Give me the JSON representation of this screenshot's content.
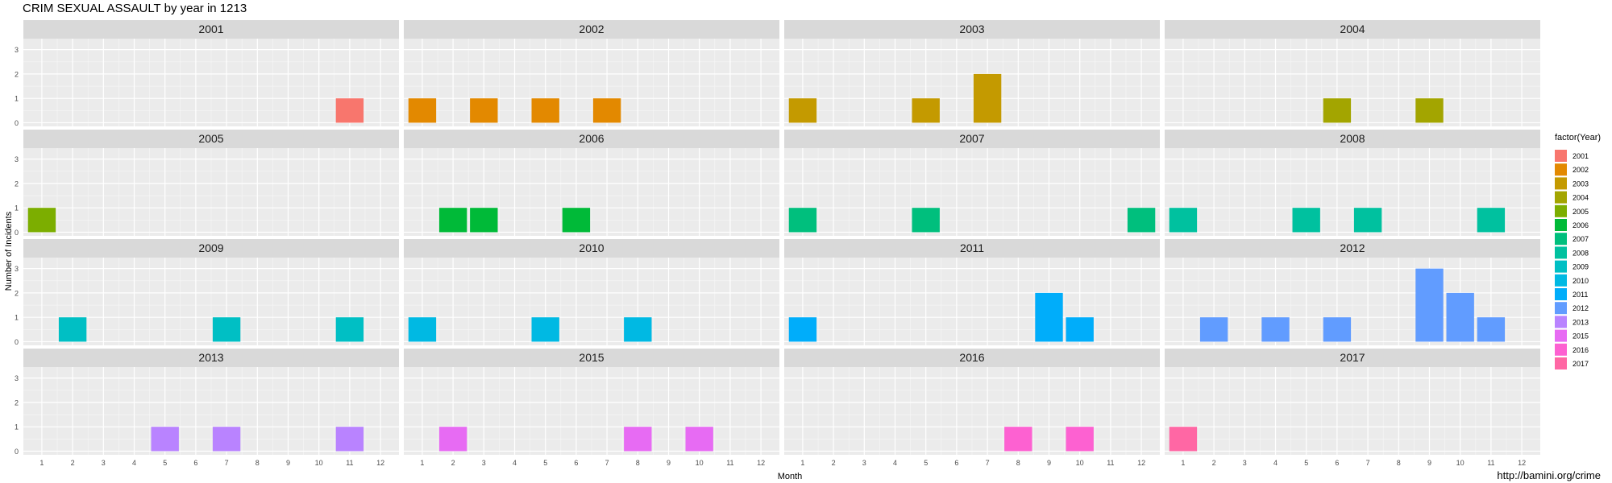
{
  "title": "CRIM SEXUAL ASSAULT by year in 1213",
  "source": "http://bamini.org/crime",
  "chart_data": {
    "type": "bar",
    "facet": "Year",
    "xlabel": "Month",
    "ylabel": "Number of Incidents",
    "xticks": [
      1,
      2,
      3,
      4,
      5,
      6,
      7,
      8,
      9,
      10,
      11,
      12
    ],
    "ylim": [
      0,
      3
    ],
    "yticks": [
      0,
      1,
      2,
      3
    ],
    "grid": true,
    "legend": {
      "title": "factor(Year)",
      "placement": "right"
    },
    "panels": [
      {
        "year": "2001",
        "color": "#F8766D",
        "bars": [
          {
            "x": 11,
            "y": 1
          }
        ]
      },
      {
        "year": "2002",
        "color": "#E38900",
        "bars": [
          {
            "x": 1,
            "y": 1
          },
          {
            "x": 3,
            "y": 1
          },
          {
            "x": 5,
            "y": 1
          },
          {
            "x": 7,
            "y": 1
          }
        ]
      },
      {
        "year": "2003",
        "color": "#C49A00",
        "bars": [
          {
            "x": 1,
            "y": 1
          },
          {
            "x": 5,
            "y": 1
          },
          {
            "x": 7,
            "y": 2
          }
        ]
      },
      {
        "year": "2004",
        "color": "#A3A500",
        "bars": [
          {
            "x": 6,
            "y": 1
          },
          {
            "x": 9,
            "y": 1
          }
        ]
      },
      {
        "year": "2005",
        "color": "#7CAE00",
        "bars": [
          {
            "x": 1,
            "y": 1
          }
        ]
      },
      {
        "year": "2006",
        "color": "#00BA38",
        "bars": [
          {
            "x": 2,
            "y": 1
          },
          {
            "x": 3,
            "y": 1
          },
          {
            "x": 6,
            "y": 1
          }
        ]
      },
      {
        "year": "2007",
        "color": "#00BF7D",
        "bars": [
          {
            "x": 1,
            "y": 1
          },
          {
            "x": 5,
            "y": 1
          },
          {
            "x": 12,
            "y": 1
          }
        ]
      },
      {
        "year": "2008",
        "color": "#00C19F",
        "bars": [
          {
            "x": 1,
            "y": 1
          },
          {
            "x": 5,
            "y": 1
          },
          {
            "x": 7,
            "y": 1
          },
          {
            "x": 11,
            "y": 1
          }
        ]
      },
      {
        "year": "2009",
        "color": "#00BFC4",
        "bars": [
          {
            "x": 2,
            "y": 1
          },
          {
            "x": 7,
            "y": 1
          },
          {
            "x": 11,
            "y": 1
          }
        ]
      },
      {
        "year": "2010",
        "color": "#00B9E3",
        "bars": [
          {
            "x": 1,
            "y": 1
          },
          {
            "x": 5,
            "y": 1
          },
          {
            "x": 8,
            "y": 1
          }
        ]
      },
      {
        "year": "2011",
        "color": "#00ADFA",
        "bars": [
          {
            "x": 1,
            "y": 1
          },
          {
            "x": 9,
            "y": 2
          },
          {
            "x": 10,
            "y": 1
          }
        ]
      },
      {
        "year": "2012",
        "color": "#619CFF",
        "bars": [
          {
            "x": 2,
            "y": 1
          },
          {
            "x": 4,
            "y": 1
          },
          {
            "x": 6,
            "y": 1
          },
          {
            "x": 9,
            "y": 3
          },
          {
            "x": 10,
            "y": 2
          },
          {
            "x": 11,
            "y": 1
          }
        ]
      },
      {
        "year": "2013",
        "color": "#B983FF",
        "bars": [
          {
            "x": 5,
            "y": 1
          },
          {
            "x": 7,
            "y": 1
          },
          {
            "x": 11,
            "y": 1
          }
        ]
      },
      {
        "year": "2015",
        "color": "#E76BF3",
        "bars": [
          {
            "x": 2,
            "y": 1
          },
          {
            "x": 8,
            "y": 1
          },
          {
            "x": 10,
            "y": 1
          }
        ]
      },
      {
        "year": "2016",
        "color": "#FD61D1",
        "bars": [
          {
            "x": 8,
            "y": 1
          },
          {
            "x": 10,
            "y": 1
          }
        ]
      },
      {
        "year": "2017",
        "color": "#FF67A4",
        "bars": [
          {
            "x": 1,
            "y": 1
          }
        ]
      }
    ],
    "legend_colors": {
      "2001": "#F8766D",
      "2002": "#E38900",
      "2003": "#C49A00",
      "2004": "#A3A500",
      "2005": "#7CAE00",
      "2006": "#00BA38",
      "2007": "#00BF7D",
      "2008": "#00C19F",
      "2009": "#00BFC4",
      "2010": "#00B9E3",
      "2011": "#00ADFA",
      "2012": "#619CFF",
      "2013": "#B983FF",
      "2015": "#E76BF3",
      "2016": "#FD61D1",
      "2017": "#FF67A4"
    }
  }
}
